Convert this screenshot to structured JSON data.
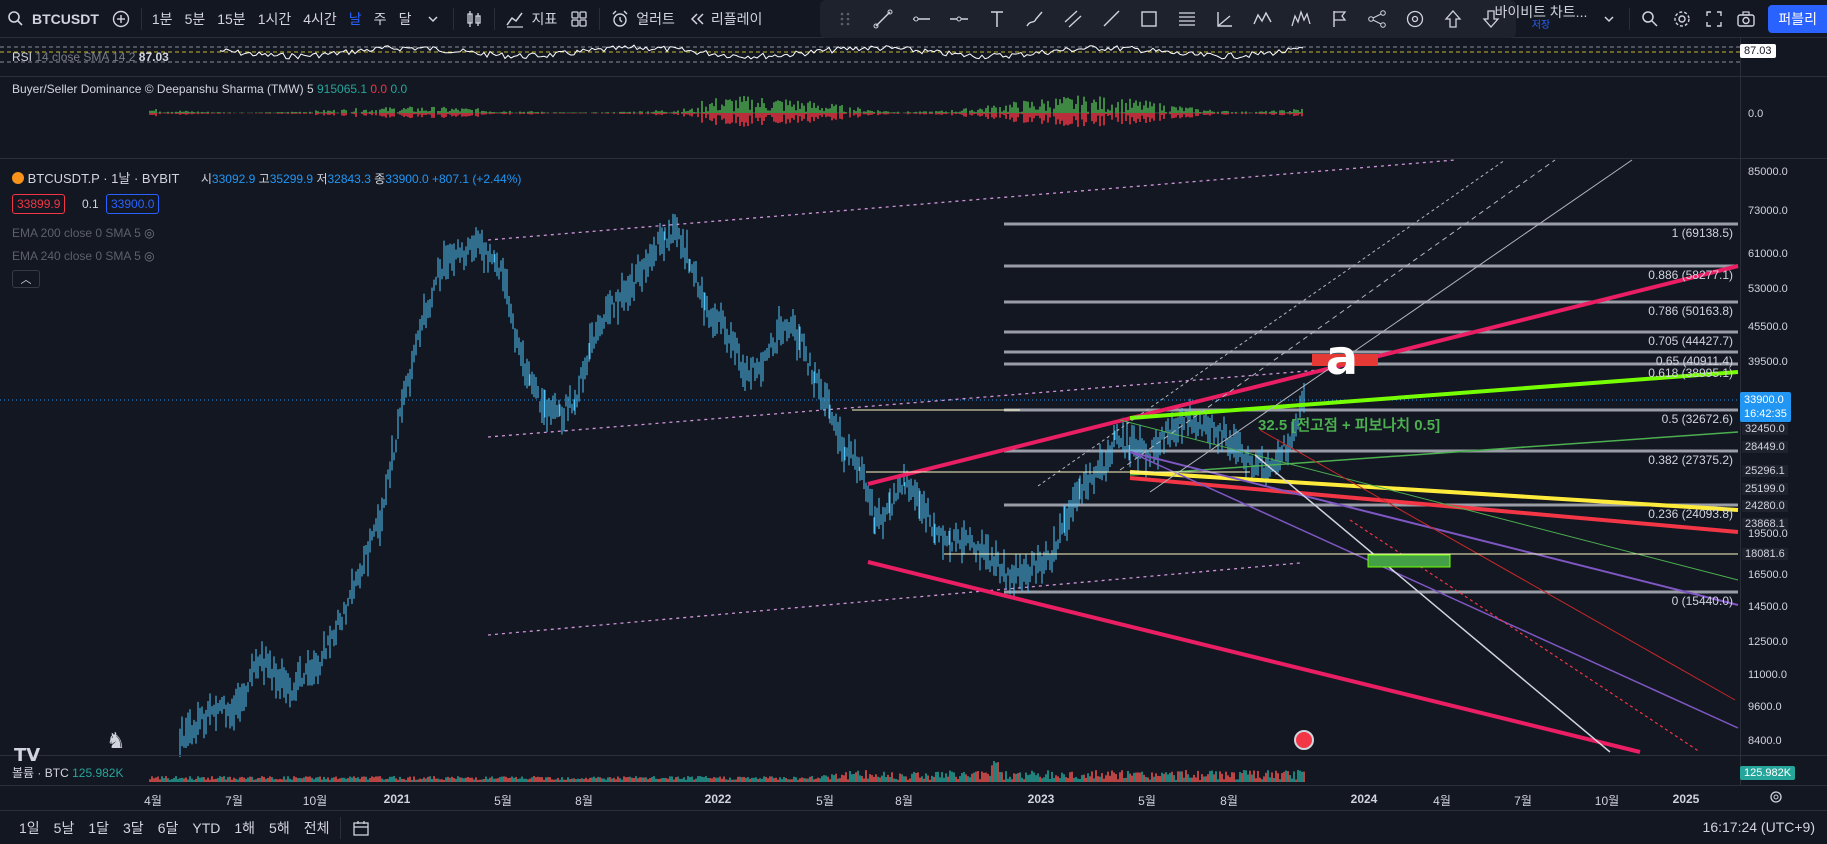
{
  "toolbar": {
    "symbol": "BTCUSDT",
    "intervals": [
      "1분",
      "5분",
      "15분",
      "1시간",
      "4시간",
      "날",
      "주",
      "달"
    ],
    "active_interval": "날",
    "indicators_label": "지표",
    "alert_label": "얼러트",
    "replay_label": "리플레이",
    "layout_name": "바이비트 차트...",
    "layout_saved": "저장",
    "publish_label": "퍼블리"
  },
  "rsi": {
    "label": "RSI",
    "params": "14 close SMA 14 2",
    "value": "87.03",
    "axis_value": "87.03"
  },
  "dominance": {
    "label": "Buyer/Seller Dominance © Deepanshu Sharma (TMW)",
    "param": "5",
    "v1": "915065.1",
    "v2": "0.0",
    "v3": "0.0",
    "axis_value": "0.0"
  },
  "main": {
    "symbol_line": "BTCUSDT.P · 1날 · BYBIT",
    "o_label": "시",
    "o": "33092.9",
    "h_label": "고",
    "h": "35299.9",
    "l_label": "저",
    "l": "32843.3",
    "c_label": "종",
    "c": "33900.0",
    "change": "+807.1 (+2.44%)",
    "bid": "33899.9",
    "spread": "0.1",
    "ask": "33900.0",
    "ema1": "EMA 200 close 0 SMA 5",
    "ema2": "EMA 240 close 0 SMA 5",
    "current_price": "33900.0",
    "countdown": "16:42:35",
    "annotation": "32.5 [전고점 + 피보나치 0.5]",
    "marker_letter": "a"
  },
  "price_axis": [
    "85000.0",
    "73000.0",
    "61000.0",
    "53000.0",
    "45500.0",
    "39500.0",
    "32450.0",
    "28449.0",
    "25296.1",
    "25199.0",
    "24280.0",
    "23868.1",
    "19500.0",
    "18081.6",
    "16500.0",
    "14500.0",
    "12500.0",
    "11000.0",
    "9600.0",
    "8400.0"
  ],
  "fib_levels": [
    {
      "label": "1 (69138.5)"
    },
    {
      "label": "0.886 (58277.1)"
    },
    {
      "label": "0.786 (50163.8)"
    },
    {
      "label": "0.705 (44427.7)"
    },
    {
      "label": "0.65 (40911.4)"
    },
    {
      "label": "0.618 (38995.1)"
    },
    {
      "label": "0.5 (32672.6)"
    },
    {
      "label": "0.382 (27375.2)"
    },
    {
      "label": "0.236 (24093.8)"
    },
    {
      "label": "0 (15440.0)"
    }
  ],
  "volume": {
    "label": "볼륨 · BTC",
    "value": "125.982K",
    "axis_value": "125.982K"
  },
  "time_axis": [
    "4월",
    "7월",
    "10월",
    "2021",
    "5월",
    "8월",
    "2022",
    "5월",
    "8월",
    "2023",
    "5월",
    "8월",
    "2024",
    "4월",
    "7월",
    "10월",
    "2025"
  ],
  "bottom": {
    "ranges": [
      "1일",
      "5날",
      "1달",
      "3달",
      "6달",
      "YTD",
      "1해",
      "5해",
      "전체"
    ],
    "clock": "16:17:24 (UTC+9)"
  },
  "colors": {
    "bg": "#131722",
    "accent": "#2962ff",
    "candle": "#4fc3f7",
    "pink_channel": "#e91e63",
    "fib_line": "#b2b5be",
    "green_line": "#76ff03",
    "red_line": "#f23645",
    "yellow_line": "#ffeb3b",
    "purple_line": "#7e57c2"
  }
}
